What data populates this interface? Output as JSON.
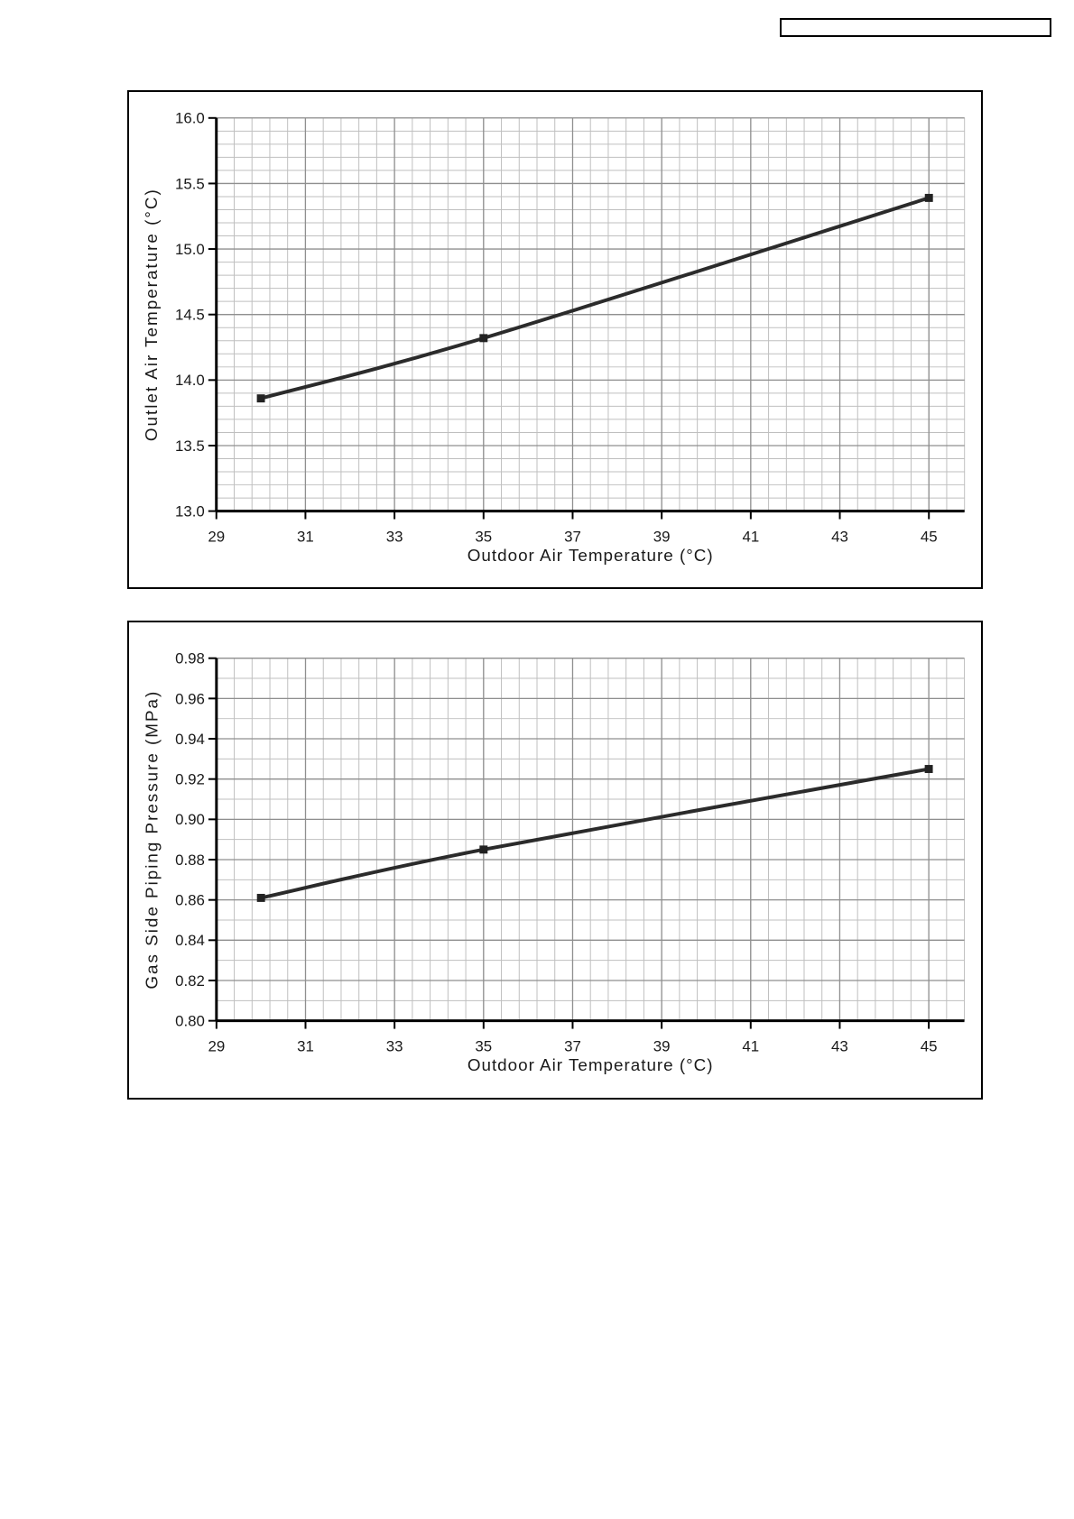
{
  "page": {
    "background": "#ffffff"
  },
  "header_box": {
    "text": ""
  },
  "style": {
    "grid_minor_color": "#bfbfbf",
    "grid_major_color": "#8f8f8f",
    "axis_color": "#000000",
    "line_color": "#2b2b2b",
    "marker_color": "#222222",
    "text_color": "#1a1a1a"
  },
  "chart_data": [
    {
      "type": "line",
      "title": "",
      "xlabel": "Outdoor Air Temperature (°C)",
      "ylabel": "Outlet Air Temperature (°C)",
      "xlim": [
        29,
        45.8
      ],
      "ylim": [
        13.0,
        16.0
      ],
      "x_major_ticks": [
        29,
        31,
        33,
        35,
        37,
        39,
        41,
        43,
        45
      ],
      "x_tick_labels": [
        "29",
        "31",
        "33",
        "35",
        "37",
        "39",
        "41",
        "43",
        "45"
      ],
      "x_minor_step": 0.4,
      "y_major_ticks": [
        13.0,
        13.5,
        14.0,
        14.5,
        15.0,
        15.5,
        16.0
      ],
      "y_tick_labels": [
        "13.0",
        "13.5",
        "14.0",
        "14.5",
        "15.0",
        "15.5",
        "16.0"
      ],
      "y_minor_step": 0.1,
      "grid": "on",
      "legend": "none",
      "series": [
        {
          "name": "outlet-air-temperature",
          "marker": "square",
          "x": [
            30,
            35,
            45
          ],
          "y": [
            13.86,
            14.32,
            15.39
          ]
        }
      ]
    },
    {
      "type": "line",
      "title": "",
      "xlabel": "Outdoor Air Temperature (°C)",
      "ylabel": "Gas Side Piping Pressure (MPa)",
      "xlim": [
        29,
        45.8
      ],
      "ylim": [
        0.8,
        0.98
      ],
      "x_major_ticks": [
        29,
        31,
        33,
        35,
        37,
        39,
        41,
        43,
        45
      ],
      "x_tick_labels": [
        "29",
        "31",
        "33",
        "35",
        "37",
        "39",
        "41",
        "43",
        "45"
      ],
      "x_minor_step": 0.4,
      "y_major_ticks": [
        0.8,
        0.82,
        0.84,
        0.86,
        0.88,
        0.9,
        0.92,
        0.94,
        0.96,
        0.98
      ],
      "y_tick_labels": [
        "0.80",
        "0.82",
        "0.84",
        "0.86",
        "0.88",
        "0.90",
        "0.92",
        "0.94",
        "0.96",
        "0.98"
      ],
      "y_minor_step": 0.01,
      "grid": "on",
      "legend": "none",
      "series": [
        {
          "name": "gas-side-piping-pressure",
          "marker": "square",
          "x": [
            30,
            35,
            45
          ],
          "y": [
            0.861,
            0.885,
            0.925
          ]
        }
      ]
    }
  ]
}
